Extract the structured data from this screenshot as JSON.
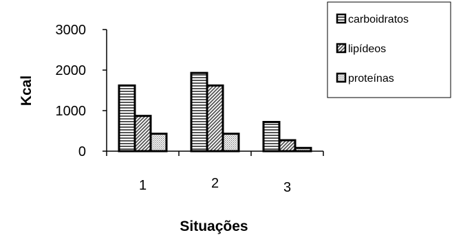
{
  "chart_data": {
    "type": "bar",
    "title": "",
    "xlabel": "Situações",
    "ylabel": "Kcal",
    "categories": [
      "1",
      "2",
      "3"
    ],
    "ylim": [
      0,
      3000
    ],
    "yticks": [
      0,
      1000,
      2000,
      3000
    ],
    "grid": false,
    "legend_position": "top-right",
    "series": [
      {
        "name": "carboidratos",
        "values": [
          1620,
          1930,
          720
        ],
        "pattern": "horizontal-stripes"
      },
      {
        "name": "lipídeos",
        "values": [
          870,
          1620,
          270
        ],
        "pattern": "diagonal-hatch"
      },
      {
        "name": "proteínas",
        "values": [
          430,
          430,
          80
        ],
        "pattern": "dots"
      }
    ]
  }
}
